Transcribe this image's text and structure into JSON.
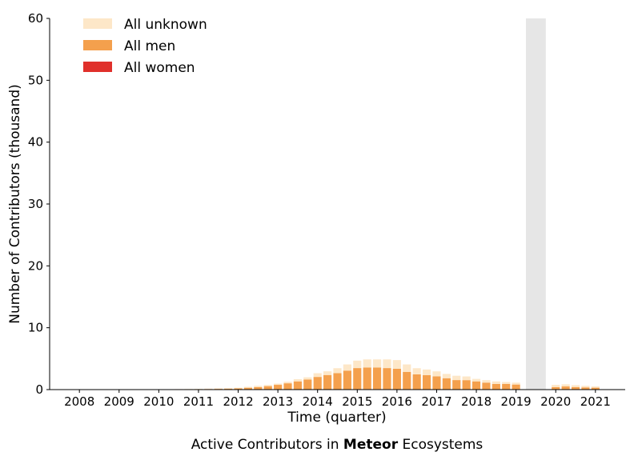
{
  "chart_data": {
    "type": "bar",
    "xlabel": "Time (quarter)",
    "ylabel": "Number of Contributors (thousand)",
    "ylim": [
      0,
      60
    ],
    "yticks": [
      0,
      10,
      20,
      30,
      40,
      50,
      60
    ],
    "xticks": [
      {
        "label": "2008",
        "x": 2008.0
      },
      {
        "label": "2009",
        "x": 2009.0
      },
      {
        "label": "2010",
        "x": 2010.0
      },
      {
        "label": "2011",
        "x": 2011.0
      },
      {
        "label": "2012",
        "x": 2012.0
      },
      {
        "label": "2013",
        "x": 2013.0
      },
      {
        "label": "2014",
        "x": 2014.0
      },
      {
        "label": "2015",
        "x": 2015.0
      },
      {
        "label": "2016",
        "x": 2016.0
      },
      {
        "label": "2017",
        "x": 2017.0
      },
      {
        "label": "2018",
        "x": 2018.0
      },
      {
        "label": "2019",
        "x": 2019.0
      },
      {
        "label": "2020",
        "x": 2020.0
      },
      {
        "label": "2021",
        "x": 2021.0
      }
    ],
    "xlim": [
      2007.25,
      2021.75
    ],
    "legend_position": "top-left",
    "shaded_region": {
      "x_start": 2019.25,
      "x_end": 2019.75,
      "color": "#e6e6e6"
    },
    "stacking": "stacked (women, men, unknown)",
    "quarters": [
      2010.5,
      2010.75,
      2011.0,
      2011.25,
      2011.5,
      2011.75,
      2012.0,
      2012.25,
      2012.5,
      2012.75,
      2013.0,
      2013.25,
      2013.5,
      2013.75,
      2014.0,
      2014.25,
      2014.5,
      2014.75,
      2015.0,
      2015.25,
      2015.5,
      2015.75,
      2016.0,
      2016.25,
      2016.5,
      2016.75,
      2017.0,
      2017.25,
      2017.5,
      2017.75,
      2018.0,
      2018.25,
      2018.5,
      2018.75,
      2019.0,
      2020.0,
      2020.25,
      2020.5,
      2020.75,
      2021.0
    ],
    "series": [
      {
        "name": "All women",
        "color": "#e0302b",
        "values": [
          0,
          0,
          0,
          0,
          0,
          0,
          0,
          0,
          0.01,
          0.01,
          0.02,
          0.02,
          0.03,
          0.04,
          0.05,
          0.06,
          0.06,
          0.07,
          0.08,
          0.08,
          0.08,
          0.08,
          0.07,
          0.07,
          0.06,
          0.05,
          0.05,
          0.04,
          0.04,
          0.03,
          0.03,
          0.03,
          0.02,
          0.02,
          0.02,
          0.01,
          0.01,
          0.01,
          0.01,
          0.01
        ]
      },
      {
        "name": "All men",
        "color": "#f4a04d",
        "values": [
          0.05,
          0.06,
          0.08,
          0.1,
          0.12,
          0.15,
          0.2,
          0.3,
          0.4,
          0.55,
          0.75,
          1.0,
          1.3,
          1.6,
          2.0,
          2.3,
          2.6,
          3.0,
          3.4,
          3.5,
          3.5,
          3.4,
          3.3,
          2.8,
          2.4,
          2.3,
          2.1,
          1.8,
          1.5,
          1.5,
          1.3,
          1.1,
          0.9,
          0.9,
          0.8,
          0.4,
          0.5,
          0.4,
          0.35,
          0.3
        ]
      },
      {
        "name": "All unknown",
        "color": "#fde7c8",
        "values": [
          0.03,
          0.04,
          0.05,
          0.06,
          0.08,
          0.1,
          0.1,
          0.15,
          0.2,
          0.2,
          0.2,
          0.25,
          0.35,
          0.35,
          0.6,
          0.6,
          0.8,
          1.0,
          1.2,
          1.3,
          1.3,
          1.4,
          1.4,
          1.2,
          1.0,
          0.9,
          0.8,
          0.7,
          0.7,
          0.6,
          0.4,
          0.4,
          0.4,
          0.3,
          0.3,
          0.35,
          0.35,
          0.3,
          0.25,
          0.2
        ]
      }
    ],
    "legend_order": [
      "All unknown",
      "All men",
      "All women"
    ]
  },
  "caption": {
    "prefix": "Active Contributors in ",
    "bold": "Meteor",
    "suffix": " Ecosystems"
  }
}
